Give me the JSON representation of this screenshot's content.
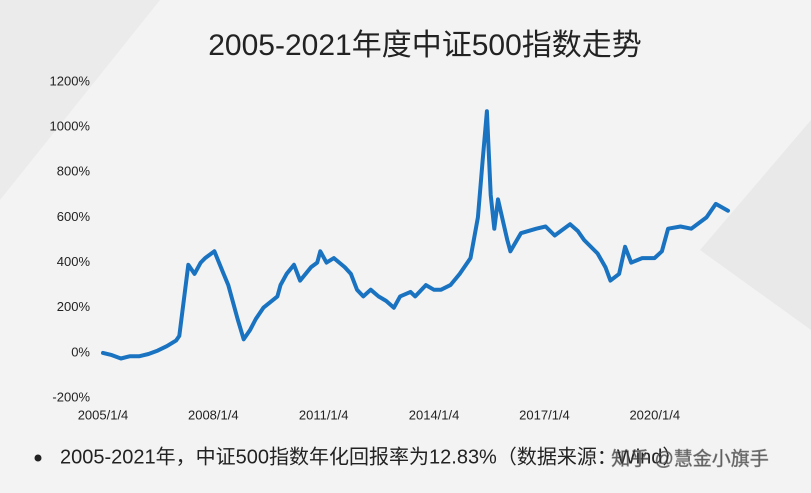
{
  "chart_data": {
    "type": "line",
    "title": "2005-2021年度中证500指数走势",
    "note": "2005-2021年，中证500指数年化回报率为12.83%（数据来源：Wind）",
    "watermark": "知乎 @慧金小旗手",
    "x": [
      "2005/1/4",
      "2005/4/1",
      "2005/7/1",
      "2005/10/1",
      "2006/1/1",
      "2006/4/1",
      "2006/7/1",
      "2006/10/1",
      "2007/1/1",
      "2007/2/1",
      "2007/5/1",
      "2007/7/1",
      "2007/9/1",
      "2007/10/15",
      "2008/1/15",
      "2008/3/1",
      "2008/4/15",
      "2008/6/1",
      "2008/9/1",
      "2008/11/1",
      "2009/1/1",
      "2009/3/1",
      "2009/5/15",
      "2009/10/1",
      "2009/11/1",
      "2010/1/1",
      "2010/3/15",
      "2010/5/15",
      "2010/9/1",
      "2010/11/1",
      "2010/12/1",
      "2011/2/1",
      "2011/4/15",
      "2011/8/1",
      "2011/10/1",
      "2011/12/1",
      "2012/2/1",
      "2012/4/15",
      "2012/7/1",
      "2012/9/15",
      "2012/12/1",
      "2013/2/1",
      "2013/5/15",
      "2013/7/1",
      "2013/10/15",
      "2014/1/1",
      "2014/3/15",
      "2014/6/15",
      "2014/9/15",
      "2015/1/1",
      "2015/3/15",
      "2015/5/1",
      "2015/6/12",
      "2015/7/20",
      "2015/8/25",
      "2015/10/1",
      "2016/1/1",
      "2016/2/1",
      "2016/5/15",
      "2016/10/15",
      "2017/1/15",
      "2017/4/15",
      "2017/9/15",
      "2017/12/1",
      "2018/2/1",
      "2018/6/15",
      "2018/9/1",
      "2018/10/20",
      "2019/1/15",
      "2019/3/15",
      "2019/5/15",
      "2019/9/1",
      "2020/1/1",
      "2020/3/15",
      "2020/5/15",
      "2020/9/15",
      "2021/1/1",
      "2021/6/1",
      "2021/9/1",
      "2021/12/31"
    ],
    "series": [
      {
        "name": "中证500",
        "color": "#1a73c0",
        "values": [
          0,
          -10,
          -25,
          -15,
          -15,
          -5,
          10,
          30,
          55,
          75,
          390,
          350,
          400,
          420,
          450,
          400,
          350,
          300,
          150,
          60,
          100,
          150,
          200,
          250,
          300,
          350,
          390,
          320,
          380,
          400,
          450,
          400,
          420,
          380,
          350,
          280,
          250,
          280,
          250,
          230,
          200,
          250,
          270,
          250,
          300,
          280,
          280,
          300,
          350,
          420,
          600,
          850,
          1070,
          700,
          550,
          680,
          500,
          450,
          530,
          550,
          560,
          520,
          570,
          540,
          500,
          440,
          380,
          320,
          350,
          470,
          400,
          420,
          420,
          450,
          550,
          560,
          550,
          600,
          660,
          630
        ]
      }
    ],
    "xlim": [
      "2005/1/4",
      "2021/12/31"
    ],
    "xticks": [
      "2005/1/4",
      "2008/1/4",
      "2011/1/4",
      "2014/1/4",
      "2017/1/4",
      "2020/1/4"
    ],
    "ylim": [
      -200,
      1200
    ],
    "yticks": [
      {
        "value": -200,
        "label": "-200%"
      },
      {
        "value": 0,
        "label": "0%"
      },
      {
        "value": 200,
        "label": "200%"
      },
      {
        "value": 400,
        "label": "400%"
      },
      {
        "value": 600,
        "label": "600%"
      },
      {
        "value": 800,
        "label": "800%"
      },
      {
        "value": 1000,
        "label": "1000%"
      },
      {
        "value": 1200,
        "label": "1200%"
      }
    ],
    "grid": false
  }
}
